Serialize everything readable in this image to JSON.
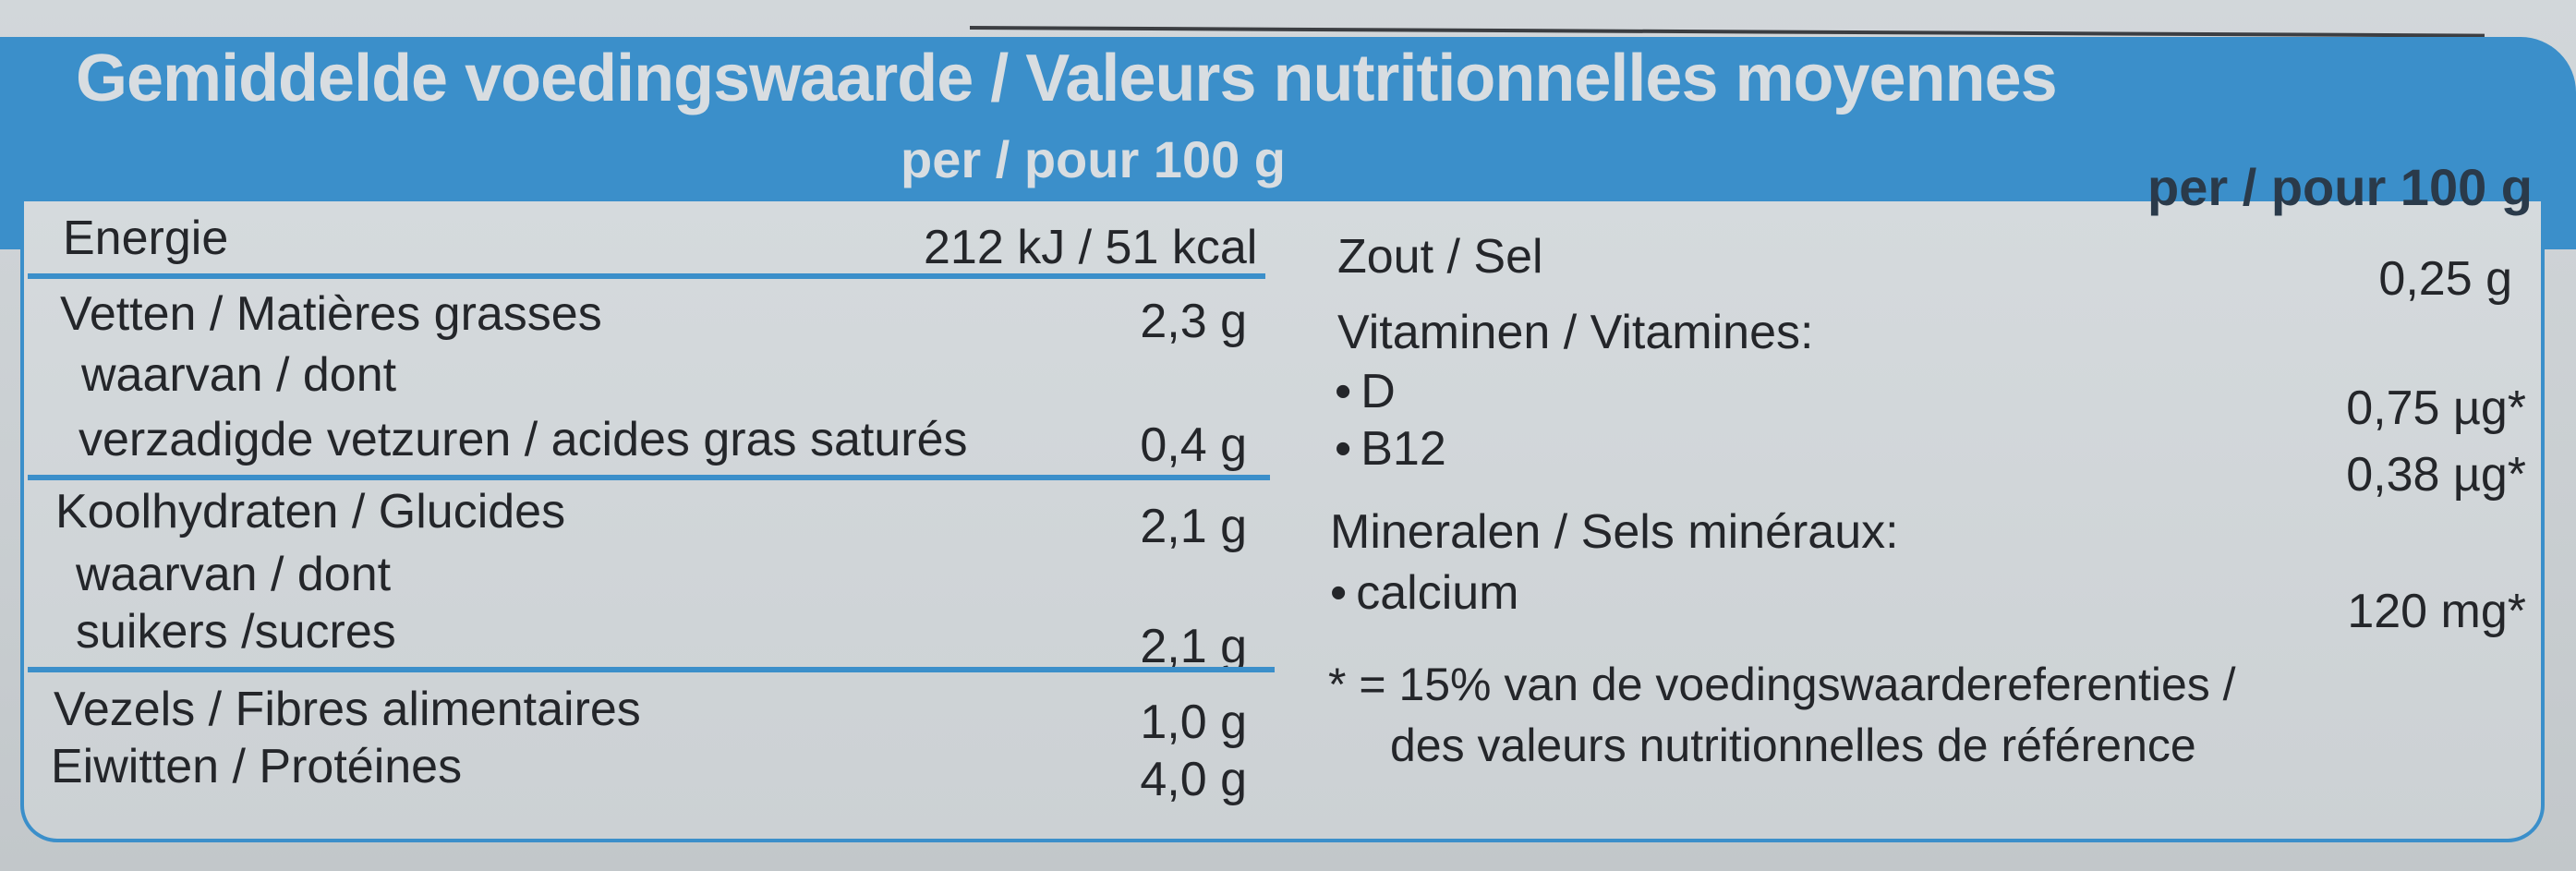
{
  "header": {
    "title": "Gemiddelde voedingswaarde / Valeurs nutritionnelles moyennes",
    "per_left": "per / pour 100 g",
    "per_right": "per / pour 100 g"
  },
  "left_table": {
    "energy": {
      "label": "Energie",
      "value": "212 kJ / 51 kcal"
    },
    "fat": {
      "label": "Vetten / Matières grasses",
      "value": "2,3 g"
    },
    "fat_of_which": {
      "label": "waarvan / dont"
    },
    "saturated": {
      "label": "verzadigde vetzuren / acides gras saturés",
      "value": "0,4 g"
    },
    "carbs": {
      "label": "Koolhydraten / Glucides",
      "value": "2,1 g"
    },
    "carbs_of_which": {
      "label": "waarvan / dont"
    },
    "sugars": {
      "label": "suikers /sucres",
      "value": "2,1 g"
    },
    "fibre": {
      "label": "Vezels / Fibres alimentaires",
      "value": "1,0 g"
    },
    "protein": {
      "label": "Eiwitten / Protéines",
      "value": "4,0 g"
    }
  },
  "right_table": {
    "salt": {
      "label": "Zout / Sel",
      "value": "0,25 g"
    },
    "vitamins": {
      "label": "Vitaminen / Vitamines:"
    },
    "vitamin_d": {
      "label": "D",
      "value": "0,75 µg*"
    },
    "vitamin_b12": {
      "label": "B12",
      "value": "0,38 µg*"
    },
    "minerals": {
      "label": "Mineralen / Sels minéraux:"
    },
    "calcium": {
      "label": "calcium",
      "value": "120 mg*"
    },
    "footnote_line1": "* = 15% van de voedingswaardereferenties /",
    "footnote_line2": "des valeurs nutritionnelles de référence"
  },
  "colors": {
    "accent_blue": "#3b8fca",
    "header_text": "#d8dde1",
    "body_text": "#24262a",
    "background": "#cdd2d5"
  }
}
